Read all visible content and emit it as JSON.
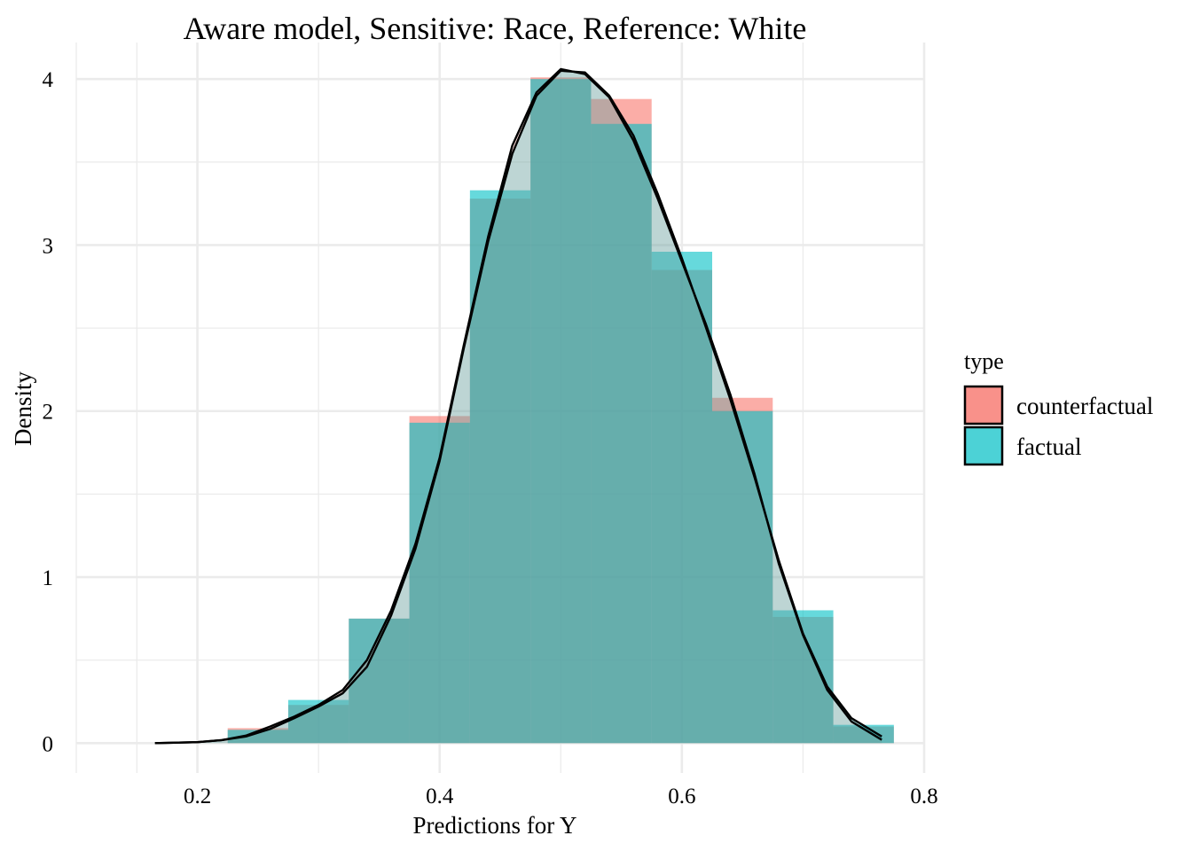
{
  "chart_data": {
    "type": "histogram",
    "title": "Aware model, Sensitive: Race, Reference: White",
    "xlabel": "Predictions for Y",
    "ylabel": "Density",
    "xlim": [
      0.1,
      0.8
    ],
    "ylim": [
      -0.18,
      4.22
    ],
    "x_ticks": [
      0.2,
      0.4,
      0.6,
      0.8
    ],
    "x_tick_labels": [
      "0.2",
      "0.4",
      "0.6",
      "0.8"
    ],
    "y_ticks": [
      0,
      1,
      2,
      3,
      4
    ],
    "y_tick_labels": [
      "0",
      "1",
      "2",
      "3",
      "4"
    ],
    "grid": true,
    "legend": {
      "title": "type",
      "position": "right"
    },
    "bins": [
      [
        0.225,
        0.275
      ],
      [
        0.275,
        0.325
      ],
      [
        0.325,
        0.375
      ],
      [
        0.375,
        0.425
      ],
      [
        0.425,
        0.475
      ],
      [
        0.475,
        0.525
      ],
      [
        0.525,
        0.575
      ],
      [
        0.575,
        0.625
      ],
      [
        0.625,
        0.675
      ],
      [
        0.675,
        0.725
      ],
      [
        0.725,
        0.775
      ]
    ],
    "series": [
      {
        "name": "counterfactual",
        "color": "#F8766D",
        "values": [
          0.09,
          0.23,
          0.75,
          1.97,
          3.28,
          4.01,
          3.88,
          2.85,
          2.08,
          0.76,
          0.1
        ],
        "density": [
          [
            0.165,
            0.0
          ],
          [
            0.2,
            0.006
          ],
          [
            0.22,
            0.018
          ],
          [
            0.24,
            0.045
          ],
          [
            0.26,
            0.1
          ],
          [
            0.28,
            0.16
          ],
          [
            0.3,
            0.23
          ],
          [
            0.32,
            0.32
          ],
          [
            0.34,
            0.5
          ],
          [
            0.36,
            0.8
          ],
          [
            0.38,
            1.2
          ],
          [
            0.4,
            1.72
          ],
          [
            0.42,
            2.4
          ],
          [
            0.44,
            3.05
          ],
          [
            0.46,
            3.6
          ],
          [
            0.48,
            3.92
          ],
          [
            0.5,
            4.06
          ],
          [
            0.52,
            4.03
          ],
          [
            0.54,
            3.89
          ],
          [
            0.56,
            3.63
          ],
          [
            0.58,
            3.28
          ],
          [
            0.6,
            2.9
          ],
          [
            0.62,
            2.52
          ],
          [
            0.64,
            2.1
          ],
          [
            0.66,
            1.62
          ],
          [
            0.68,
            1.08
          ],
          [
            0.7,
            0.65
          ],
          [
            0.72,
            0.32
          ],
          [
            0.74,
            0.13
          ],
          [
            0.765,
            0.02
          ]
        ]
      },
      {
        "name": "factual",
        "color": "#00BFC4",
        "values": [
          0.08,
          0.26,
          0.75,
          1.93,
          3.33,
          4.0,
          3.73,
          2.96,
          2.0,
          0.8,
          0.11
        ],
        "density": [
          [
            0.165,
            0.0
          ],
          [
            0.2,
            0.006
          ],
          [
            0.22,
            0.018
          ],
          [
            0.24,
            0.04
          ],
          [
            0.26,
            0.085
          ],
          [
            0.28,
            0.15
          ],
          [
            0.3,
            0.22
          ],
          [
            0.32,
            0.3
          ],
          [
            0.34,
            0.46
          ],
          [
            0.36,
            0.77
          ],
          [
            0.38,
            1.17
          ],
          [
            0.4,
            1.7
          ],
          [
            0.42,
            2.38
          ],
          [
            0.44,
            3.02
          ],
          [
            0.46,
            3.55
          ],
          [
            0.48,
            3.9
          ],
          [
            0.5,
            4.05
          ],
          [
            0.52,
            4.04
          ],
          [
            0.54,
            3.9
          ],
          [
            0.56,
            3.66
          ],
          [
            0.58,
            3.31
          ],
          [
            0.6,
            2.92
          ],
          [
            0.62,
            2.5
          ],
          [
            0.64,
            2.07
          ],
          [
            0.66,
            1.6
          ],
          [
            0.68,
            1.1
          ],
          [
            0.7,
            0.66
          ],
          [
            0.72,
            0.34
          ],
          [
            0.74,
            0.15
          ],
          [
            0.765,
            0.04
          ]
        ]
      }
    ],
    "density_line_color": "#000000"
  }
}
